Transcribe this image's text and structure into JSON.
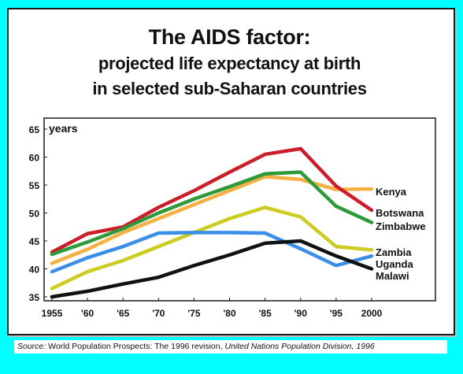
{
  "title": "The AIDS factor:",
  "subtitle_line1": "projected life expectancy at birth",
  "subtitle_line2": "in selected sub-Saharan countries",
  "source": {
    "prefix": "Source:",
    "text1": "World Population Prospects: The 1996 revision,",
    "text2": "United Nations Population Division, 1996"
  },
  "chart_data": {
    "type": "line",
    "ylabel": "years",
    "ylim": [
      35,
      65
    ],
    "yticks": [
      35,
      40,
      45,
      50,
      55,
      60,
      65
    ],
    "xticks": [
      {
        "value": 1955,
        "label": "1955"
      },
      {
        "value": 1960,
        "label": "'60"
      },
      {
        "value": 1965,
        "label": "'65"
      },
      {
        "value": 1970,
        "label": "'70"
      },
      {
        "value": 1975,
        "label": "'75"
      },
      {
        "value": 1980,
        "label": "'80"
      },
      {
        "value": 1985,
        "label": "'85"
      },
      {
        "value": 1990,
        "label": "'90"
      },
      {
        "value": 1995,
        "label": "'95"
      },
      {
        "value": 2000,
        "label": "2000"
      }
    ],
    "grid": false,
    "legend": "labels at line ends (right)",
    "x": [
      1955,
      1960,
      1965,
      1970,
      1975,
      1980,
      1985,
      1990,
      1995,
      2000
    ],
    "series": [
      {
        "name": "Kenya",
        "color": "#f5b042",
        "values": [
          41,
          43.5,
          46.5,
          49,
          51.5,
          54,
          56.5,
          56,
          54.2,
          54.3
        ]
      },
      {
        "name": "Botswana",
        "color": "#cc1e2a",
        "values": [
          43,
          46.3,
          47.5,
          51,
          54,
          57.3,
          60.5,
          61.5,
          54.8,
          50.5
        ]
      },
      {
        "name": "Zimbabwe",
        "color": "#2e9a3a",
        "values": [
          42.6,
          44.8,
          47.2,
          50,
          52.5,
          54.7,
          57,
          57.3,
          51.2,
          48.3
        ]
      },
      {
        "name": "Zambia",
        "color": "#cccc22",
        "values": [
          36.5,
          39.5,
          41.5,
          44,
          46.5,
          49,
          51,
          49.3,
          44,
          43.4
        ]
      },
      {
        "name": "Uganda",
        "color": "#3a8ee8",
        "values": [
          39.5,
          42,
          44,
          46.4,
          46.5,
          46.5,
          46.4,
          43.6,
          40.6,
          42.3
        ]
      },
      {
        "name": "Malawi",
        "color": "#111111",
        "values": [
          35,
          36,
          37.3,
          38.5,
          40.6,
          42.5,
          44.6,
          45,
          42.3,
          40
        ]
      }
    ]
  }
}
